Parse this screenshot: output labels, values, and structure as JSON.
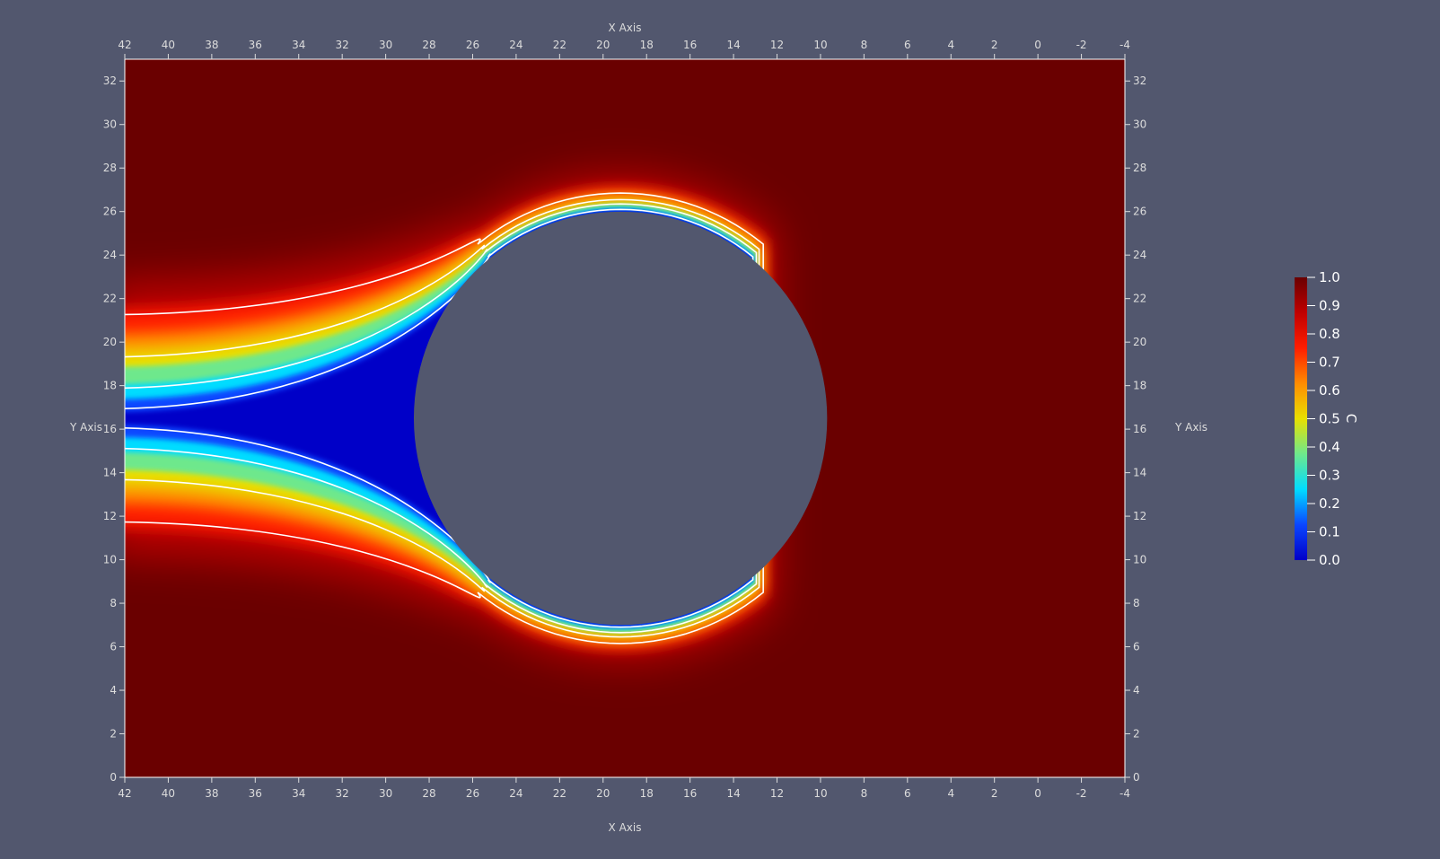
{
  "colors": {
    "background": "#52576e",
    "field_far": "#6a0000",
    "contour": "#ffffff",
    "axis_text": "#dcdcdc"
  },
  "colormap": [
    "#0000c8",
    "#0b46ff",
    "#00dcff",
    "#6ee88c",
    "#e8e000",
    "#ff8c00",
    "#ff1e00",
    "#c00000",
    "#6a0000"
  ],
  "chart_data": {
    "type": "heatmap",
    "title": "",
    "xlabel": "X Axis",
    "ylabel": "Y Axis",
    "xlim": [
      42,
      -4
    ],
    "ylim": [
      0,
      33
    ],
    "x_ticks": [
      "42",
      "40",
      "38",
      "36",
      "34",
      "32",
      "30",
      "28",
      "26",
      "24",
      "22",
      "20",
      "18",
      "16",
      "14",
      "12",
      "10",
      "8",
      "6",
      "4",
      "2",
      "0",
      "-2",
      "-4"
    ],
    "y_ticks": [
      "0",
      "2",
      "4",
      "6",
      "8",
      "10",
      "12",
      "14",
      "16",
      "18",
      "20",
      "22",
      "24",
      "26",
      "28",
      "30",
      "32"
    ],
    "colorbar": {
      "title": "C",
      "range": [
        0.0,
        1.0
      ],
      "ticks": [
        "0.0",
        "0.1",
        "0.2",
        "0.3",
        "0.4",
        "0.5",
        "0.6",
        "0.7",
        "0.8",
        "0.9",
        "1.0"
      ]
    },
    "obstacle": {
      "shape": "circle",
      "center_x": 19.2,
      "center_y": 16.5,
      "radius": 9.5
    },
    "contour_levels": [
      0.2,
      0.4,
      0.6,
      0.8
    ]
  }
}
